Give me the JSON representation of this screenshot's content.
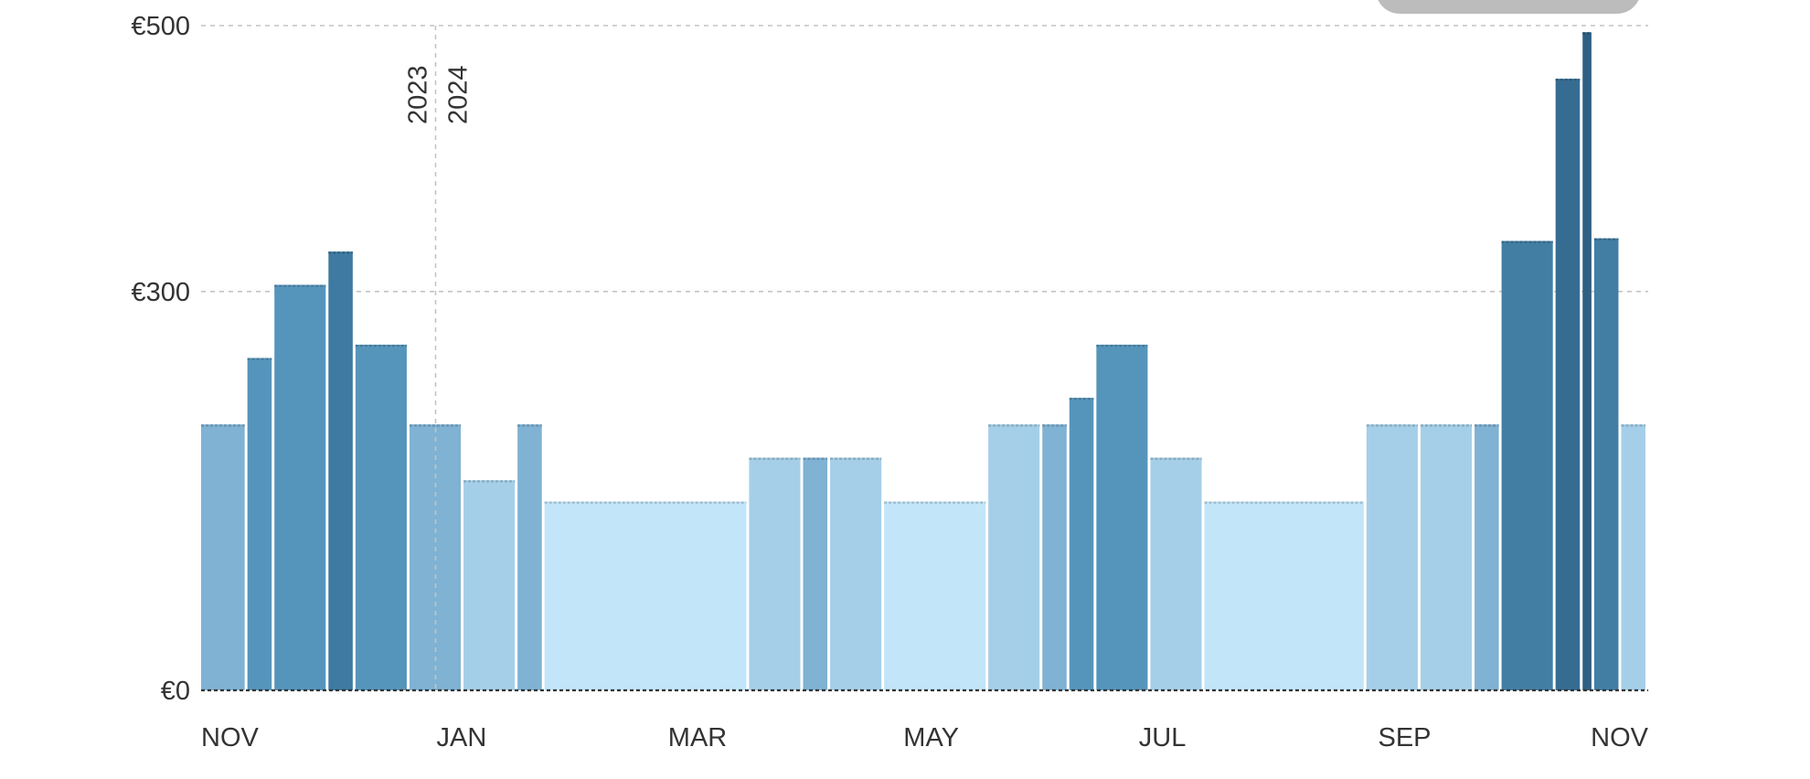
{
  "chart_data": {
    "type": "bar",
    "title": "",
    "xlabel": "",
    "ylabel": "",
    "ylim": [
      0,
      500
    ],
    "y_ticks": [
      {
        "value": 0,
        "label": "€0"
      },
      {
        "value": 300,
        "label": "€300"
      },
      {
        "value": 500,
        "label": "€500"
      }
    ],
    "x_domain": [
      "2023-11-01",
      "2024-11-10"
    ],
    "x_ticks": [
      {
        "date": "2023-11-01",
        "label": "NOV"
      },
      {
        "date": "2024-01-01",
        "label": "JAN"
      },
      {
        "date": "2024-03-01",
        "label": "MAR"
      },
      {
        "date": "2024-05-01",
        "label": "MAY"
      },
      {
        "date": "2024-07-01",
        "label": "JUL"
      },
      {
        "date": "2024-09-01",
        "label": "SEP"
      },
      {
        "date": "2024-11-01",
        "label": "NOV"
      }
    ],
    "year_divider": {
      "date": "2024-01-01",
      "before_label": "2023",
      "after_label": "2024"
    },
    "grid": true,
    "legend": "none",
    "bars": [
      {
        "start": "2023-11-01",
        "end": "2023-11-13",
        "value": 200,
        "color": "#7fb2d3"
      },
      {
        "start": "2023-11-13",
        "end": "2023-11-20",
        "value": 250,
        "color": "#5695bb"
      },
      {
        "start": "2023-11-20",
        "end": "2023-12-04",
        "value": 305,
        "color": "#5695bb"
      },
      {
        "start": "2023-12-04",
        "end": "2023-12-11",
        "value": 330,
        "color": "#3e7aa1"
      },
      {
        "start": "2023-12-11",
        "end": "2023-12-25",
        "value": 260,
        "color": "#5695bb"
      },
      {
        "start": "2023-12-25",
        "end": "2024-01-08",
        "value": 200,
        "color": "#7fb2d3"
      },
      {
        "start": "2024-01-08",
        "end": "2024-01-22",
        "value": 158,
        "color": "#a5cfe8"
      },
      {
        "start": "2024-01-22",
        "end": "2024-01-29",
        "value": 200,
        "color": "#7fb2d3"
      },
      {
        "start": "2024-01-29",
        "end": "2024-03-22",
        "value": 142,
        "color": "#c2e5f9"
      },
      {
        "start": "2024-03-22",
        "end": "2024-04-05",
        "value": 175,
        "color": "#a5cfe8"
      },
      {
        "start": "2024-04-05",
        "end": "2024-04-12",
        "value": 175,
        "color": "#7fb2d3"
      },
      {
        "start": "2024-04-12",
        "end": "2024-04-26",
        "value": 175,
        "color": "#a5cfe8"
      },
      {
        "start": "2024-04-26",
        "end": "2024-05-23",
        "value": 142,
        "color": "#c2e5f9"
      },
      {
        "start": "2024-05-23",
        "end": "2024-06-06",
        "value": 200,
        "color": "#a5cfe8"
      },
      {
        "start": "2024-06-06",
        "end": "2024-06-13",
        "value": 200,
        "color": "#7fb2d3"
      },
      {
        "start": "2024-06-13",
        "end": "2024-06-20",
        "value": 220,
        "color": "#5695bb"
      },
      {
        "start": "2024-06-20",
        "end": "2024-07-04",
        "value": 260,
        "color": "#5695bb"
      },
      {
        "start": "2024-07-04",
        "end": "2024-07-18",
        "value": 175,
        "color": "#a5cfe8"
      },
      {
        "start": "2024-07-18",
        "end": "2024-08-29",
        "value": 142,
        "color": "#c2e5f9"
      },
      {
        "start": "2024-08-29",
        "end": "2024-09-12",
        "value": 200,
        "color": "#a5cfe8"
      },
      {
        "start": "2024-09-12",
        "end": "2024-09-26",
        "value": 200,
        "color": "#a5cfe8"
      },
      {
        "start": "2024-09-26",
        "end": "2024-10-03",
        "value": 200,
        "color": "#7fb2d3"
      },
      {
        "start": "2024-10-03",
        "end": "2024-10-17",
        "value": 338,
        "color": "#427ea4"
      },
      {
        "start": "2024-10-17",
        "end": "2024-10-24",
        "value": 460,
        "color": "#376c92"
      },
      {
        "start": "2024-10-24",
        "end": "2024-10-27",
        "value": 495,
        "color": "#2f5f82"
      },
      {
        "start": "2024-10-27",
        "end": "2024-11-03",
        "value": 340,
        "color": "#427ea4"
      },
      {
        "start": "2024-11-03",
        "end": "2024-11-10",
        "value": 200,
        "color": "#a5cfe8"
      }
    ]
  }
}
